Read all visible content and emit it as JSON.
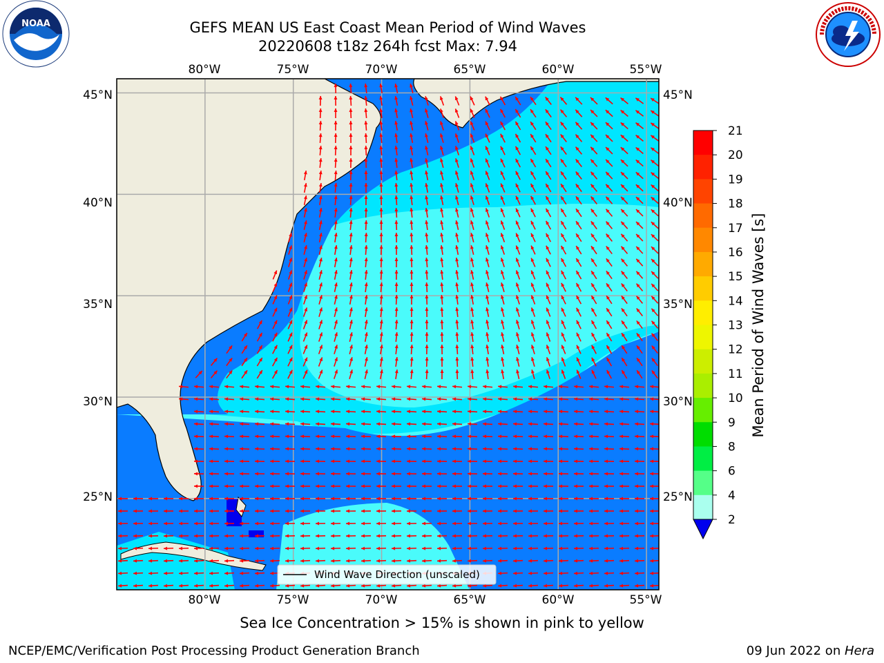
{
  "header": {
    "title": "GEFS MEAN US East Coast Mean Period of Wind Waves",
    "subtitle": "20220608 t18z 264h fcst   Max: 7.94"
  },
  "logos": {
    "noaa": {
      "text": "NOAA",
      "ring_top": "NATIONAL OCEANIC AND ATMOSPHERIC ADMINISTRATION",
      "ring_bottom": "U.S. DEPARTMENT OF COMMERCE"
    },
    "nws": {
      "ring": "NATIONAL WEATHER SERVICE"
    }
  },
  "map": {
    "lon_labels": [
      "80°W",
      "75°W",
      "70°W",
      "65°W",
      "60°W",
      "55°W"
    ],
    "lat_labels": [
      "45°N",
      "40°N",
      "35°N",
      "30°N",
      "25°N"
    ],
    "lon_values": [
      -80,
      -75,
      -70,
      -65,
      -60,
      -55
    ],
    "lat_values": [
      45,
      40,
      35,
      30,
      25
    ],
    "extent": {
      "lon_min": -85,
      "lon_max": -54.3,
      "lat_min": 20.5,
      "lat_max": 45.7
    },
    "legend_label": "Wind Wave Direction (unscaled)",
    "colors": {
      "land": "#efedde",
      "period_2_4": "#0a7cff",
      "period_4_6": "#00e6ff",
      "period_6_8": "#4afbfb",
      "below_2": "#0000ee",
      "arrow": "#ff0000",
      "grid": "#aaaaaa"
    }
  },
  "colorbar": {
    "label": "Mean Period of Wind Waves [s]",
    "ticks": [
      "21",
      "20",
      "19",
      "18",
      "17",
      "16",
      "15",
      "14",
      "13",
      "12",
      "11",
      "10",
      "9",
      "8",
      "6",
      "4",
      "2"
    ],
    "colors_top_to_bottom": [
      "#ff0000",
      "#ff2200",
      "#ff4400",
      "#ff6a00",
      "#ff8800",
      "#ffaa00",
      "#ffcc00",
      "#ffee00",
      "#eef600",
      "#ccee00",
      "#aaee00",
      "#66ee00",
      "#00dd00",
      "#00ee44",
      "#55ff88",
      "#aaffee",
      "#4afbfb",
      "#00e6ff",
      "#0a7cff"
    ],
    "extend_color": "#0000ee"
  },
  "notes": {
    "sea_ice": "Sea Ice Concentration > 15% is shown in pink to yellow"
  },
  "footer": {
    "left": "NCEP/EMC/Verification Post Processing Product Generation Branch",
    "right_date": "09 Jun 2022 on ",
    "right_host": "Hera"
  }
}
